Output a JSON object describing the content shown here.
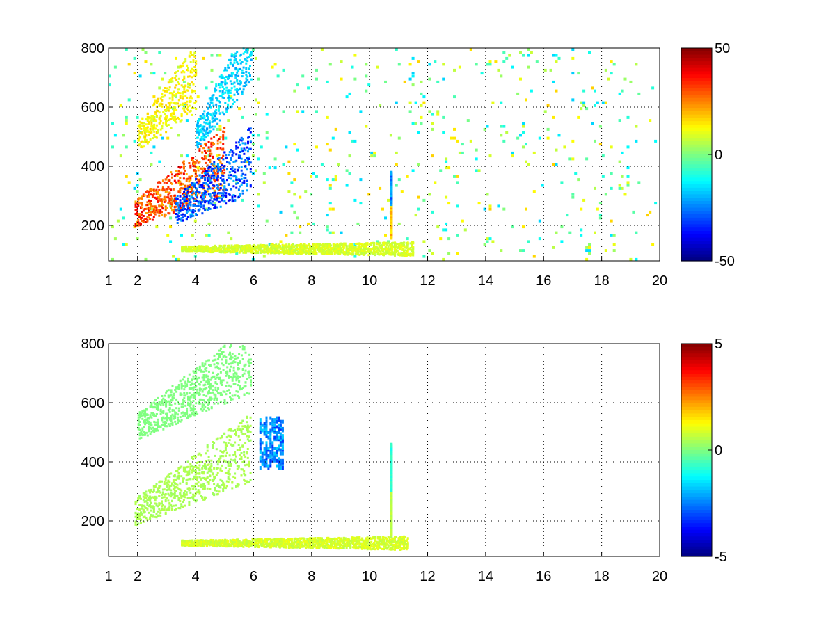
{
  "chart_data": [
    {
      "type": "heatmap",
      "title": "",
      "xlabel": "",
      "ylabel": "",
      "xlim": [
        1,
        20
      ],
      "ylim": [
        80,
        800
      ],
      "x_ticks": [
        1,
        2,
        4,
        6,
        8,
        10,
        12,
        14,
        16,
        18,
        20
      ],
      "x_tick_labels": [
        "1",
        "2",
        "4",
        "6",
        "8",
        "10",
        "12",
        "14",
        "16",
        "18",
        "20"
      ],
      "y_ticks": [
        200,
        400,
        600,
        800
      ],
      "y_tick_labels": [
        "200",
        "400",
        "600",
        "800"
      ],
      "grid": true,
      "colormap": "jet",
      "colorbar": {
        "min": -50,
        "max": 50,
        "ticks": [
          50,
          0,
          -50
        ],
        "tick_labels": [
          "50",
          "0",
          "-50"
        ]
      },
      "features": [
        {
          "desc": "positive upper branch",
          "x": [
            2.0,
            4.0
          ],
          "y_center": [
            500,
            700
          ],
          "value": 15
        },
        {
          "desc": "positive main branch",
          "x": [
            1.9,
            5.0
          ],
          "y_center": [
            240,
            420
          ],
          "value": 35
        },
        {
          "desc": "negative main branch",
          "x": [
            3.3,
            5.9
          ],
          "y_center": [
            250,
            420
          ],
          "value": -35
        },
        {
          "desc": "negative upper band",
          "x": [
            4.0,
            5.9
          ],
          "y_center": [
            500,
            800
          ],
          "value": -20
        },
        {
          "desc": "low band",
          "x": [
            3.5,
            11.5
          ],
          "y_center": [
            120,
            120
          ],
          "value": 10
        },
        {
          "desc": "vertical streak",
          "x": [
            10.7,
            10.7
          ],
          "y": [
            160,
            380
          ],
          "value": -30
        }
      ]
    },
    {
      "type": "heatmap",
      "title": "",
      "xlabel": "",
      "ylabel": "",
      "xlim": [
        1,
        20
      ],
      "ylim": [
        80,
        800
      ],
      "x_ticks": [
        1,
        2,
        4,
        6,
        8,
        10,
        12,
        14,
        16,
        18,
        20
      ],
      "x_tick_labels": [
        "1",
        "2",
        "4",
        "6",
        "8",
        "10",
        "12",
        "14",
        "16",
        "18",
        "20"
      ],
      "y_ticks": [
        200,
        400,
        600,
        800
      ],
      "y_tick_labels": [
        "200",
        "400",
        "600",
        "800"
      ],
      "grid": true,
      "colormap": "jet",
      "colorbar": {
        "min": -5,
        "max": 5,
        "ticks": [
          5,
          0,
          -5
        ],
        "tick_labels": [
          "5",
          "0",
          "-5"
        ]
      },
      "features": [
        {
          "desc": "main branch",
          "x": [
            1.9,
            5.9
          ],
          "y_center": [
            230,
            450
          ],
          "value": 0.5
        },
        {
          "desc": "upper branch",
          "x": [
            2.0,
            5.9
          ],
          "y_center": [
            520,
            750
          ],
          "value": 0
        },
        {
          "desc": "patch",
          "x": [
            6.2,
            7.0
          ],
          "y": [
            380,
            550
          ],
          "value": -3
        },
        {
          "desc": "low band",
          "x": [
            3.5,
            11.3
          ],
          "y_center": [
            125,
            125
          ],
          "value": 1
        },
        {
          "desc": "vertical streak",
          "x": [
            10.7,
            10.7
          ],
          "y": [
            150,
            460
          ],
          "value": -1
        }
      ]
    }
  ]
}
